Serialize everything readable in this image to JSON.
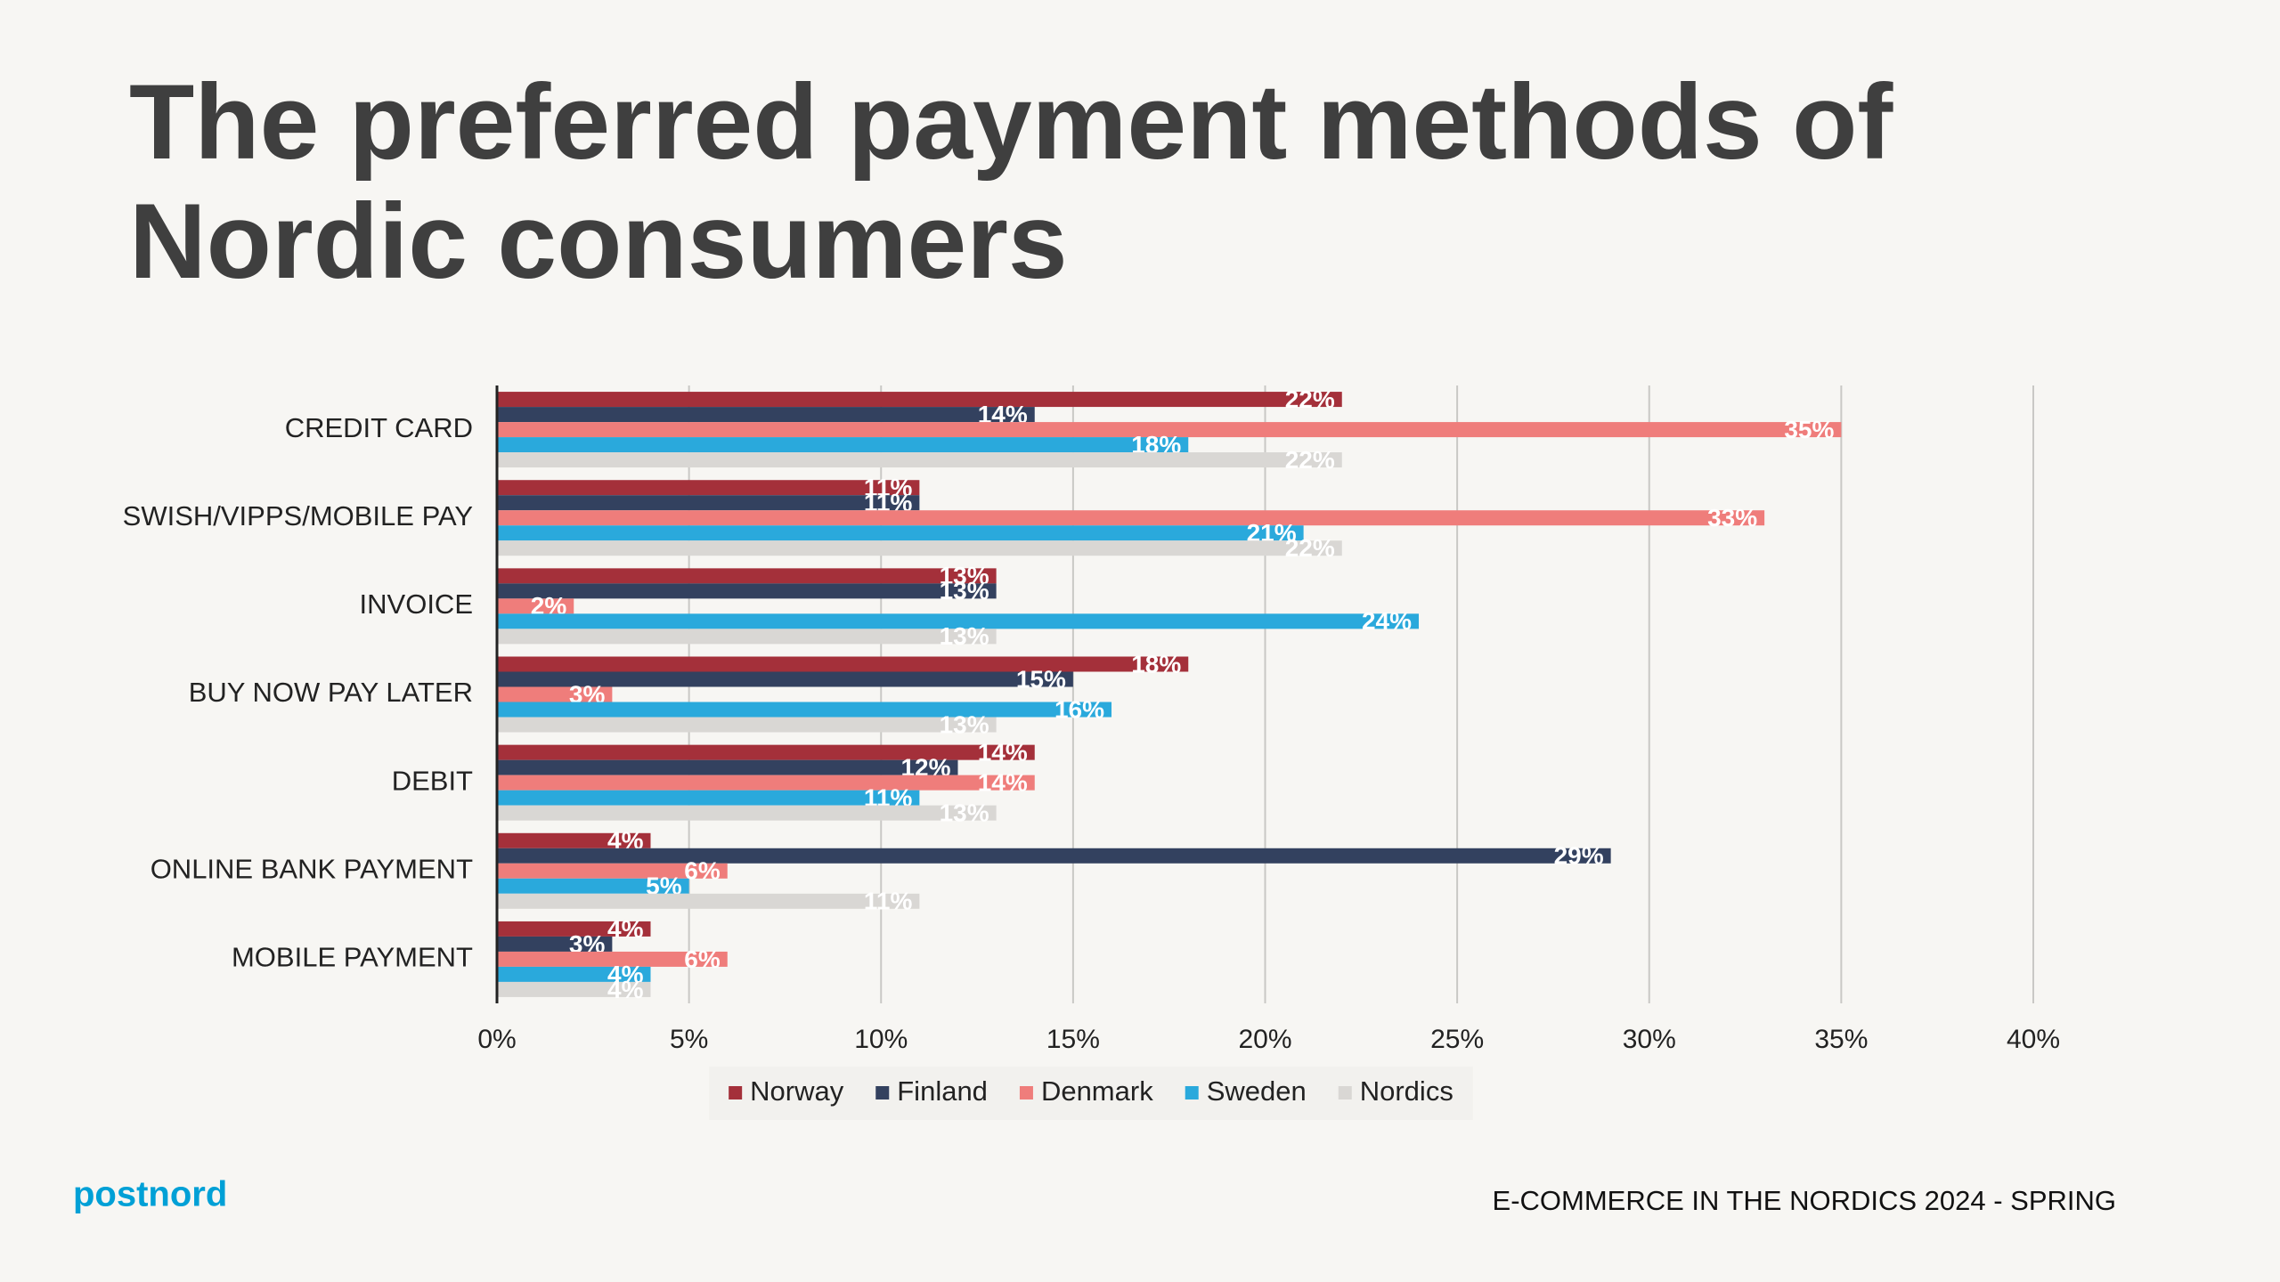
{
  "chart_data": {
    "type": "hbar",
    "title": "The preferred payment methods of Nordic consumers",
    "categories": [
      "CREDIT CARD",
      "SWISH/VIPPS/MOBILE PAY",
      "INVOICE",
      "BUY NOW PAY LATER",
      "DEBIT",
      "ONLINE BANK PAYMENT",
      "MOBILE PAYMENT"
    ],
    "series": [
      {
        "name": "Norway",
        "color": "#a4303a",
        "values": [
          22,
          11,
          13,
          18,
          14,
          4,
          4
        ],
        "value_labels": [
          "22%",
          "11%",
          "13%",
          "18%",
          "14%",
          "4%",
          "4%"
        ]
      },
      {
        "name": "Finland",
        "color": "#33415f",
        "values": [
          14,
          11,
          13,
          15,
          12,
          29,
          3
        ],
        "value_labels": [
          "14%",
          "11%",
          "13%",
          "15%",
          "12%",
          "29%",
          "3%"
        ]
      },
      {
        "name": "Denmark",
        "color": "#ef7d7b",
        "values": [
          35,
          33,
          2,
          3,
          14,
          6,
          6
        ],
        "value_labels": [
          "35%",
          "33%",
          "2%",
          "3%",
          "14%",
          "6%",
          "6%"
        ]
      },
      {
        "name": "Sweden",
        "color": "#2aa9dc",
        "values": [
          18,
          21,
          24,
          16,
          11,
          5,
          4
        ],
        "value_labels": [
          "18%",
          "21%",
          "24%",
          "16%",
          "11%",
          "5%",
          "4%"
        ]
      },
      {
        "name": "Nordics",
        "color": "#d9d7d4",
        "values": [
          22,
          22,
          13,
          13,
          13,
          11,
          4
        ],
        "value_labels": [
          "22%",
          "22%",
          "13%",
          "13%",
          "13%",
          "11%",
          "4%"
        ]
      }
    ],
    "xlim": [
      0,
      40
    ],
    "xticks": [
      {
        "value": 0,
        "label": "0%"
      },
      {
        "value": 5,
        "label": "5%"
      },
      {
        "value": 10,
        "label": "10%"
      },
      {
        "value": 15,
        "label": "15%"
      },
      {
        "value": 20,
        "label": "20%"
      },
      {
        "value": 25,
        "label": "25%"
      },
      {
        "value": 30,
        "label": "30%"
      },
      {
        "value": 35,
        "label": "35%"
      },
      {
        "value": 40,
        "label": "40%"
      }
    ],
    "grid": true,
    "legend": "bottom",
    "footer": "E-COMMERCE IN THE NORDICS 2024 - SPRING",
    "logo": "postnord"
  }
}
